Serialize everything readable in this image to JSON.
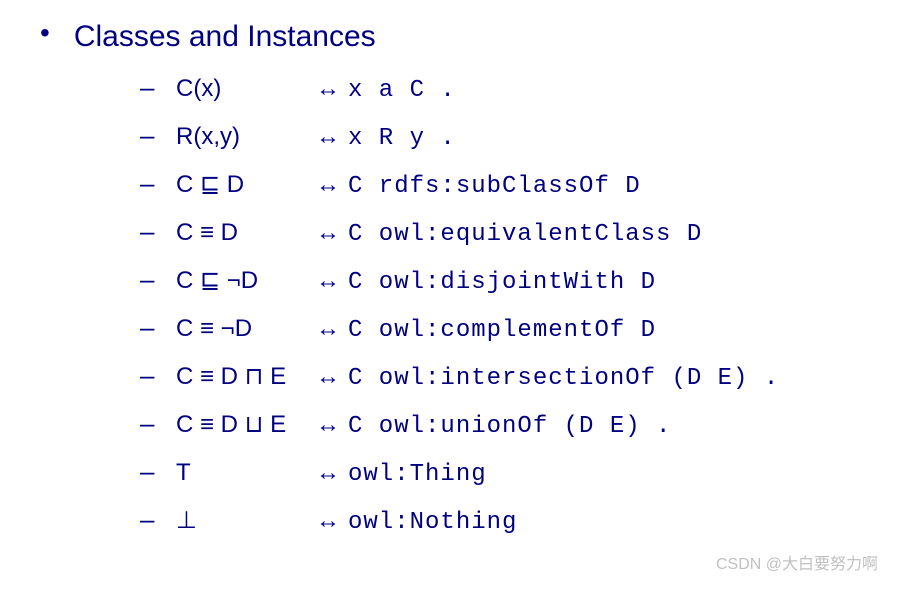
{
  "heading": "Classes and Instances",
  "colors": {
    "text": "#000080",
    "background": "#ffffff",
    "watermark": "rgba(150,150,150,0.6)"
  },
  "typography": {
    "heading_fontsize": 30,
    "item_fontsize": 24,
    "font_sans": "Arial",
    "font_mono": "Courier New"
  },
  "bullet_char": "•",
  "dash_char": "–",
  "arrow_char": "↔",
  "items": [
    {
      "notation": "C(x)",
      "mapping": "x a C ."
    },
    {
      "notation": "R(x,y)",
      "mapping": " x R y ."
    },
    {
      "notation": "C ⊑ D",
      "mapping": "C rdfs:subClassOf D"
    },
    {
      "notation": "C ≡ D",
      "mapping": "C owl:equivalentClass D"
    },
    {
      "notation": "C ⊑ ¬D",
      "mapping": "C owl:disjointWith D"
    },
    {
      "notation": "C ≡ ¬D",
      "mapping": "C owl:complementOf D"
    },
    {
      "notation": "C ≡ D ⊓ E",
      "mapping": "C owl:intersectionOf (D E) ."
    },
    {
      "notation": "C ≡ D ⊔ E",
      "mapping": "C owl:unionOf (D E) ."
    },
    {
      "notation": "T",
      "mapping": " owl:Thing"
    },
    {
      "notation": "⊥",
      "mapping": " owl:Nothing"
    }
  ],
  "watermark": "CSDN @大白要努力啊"
}
